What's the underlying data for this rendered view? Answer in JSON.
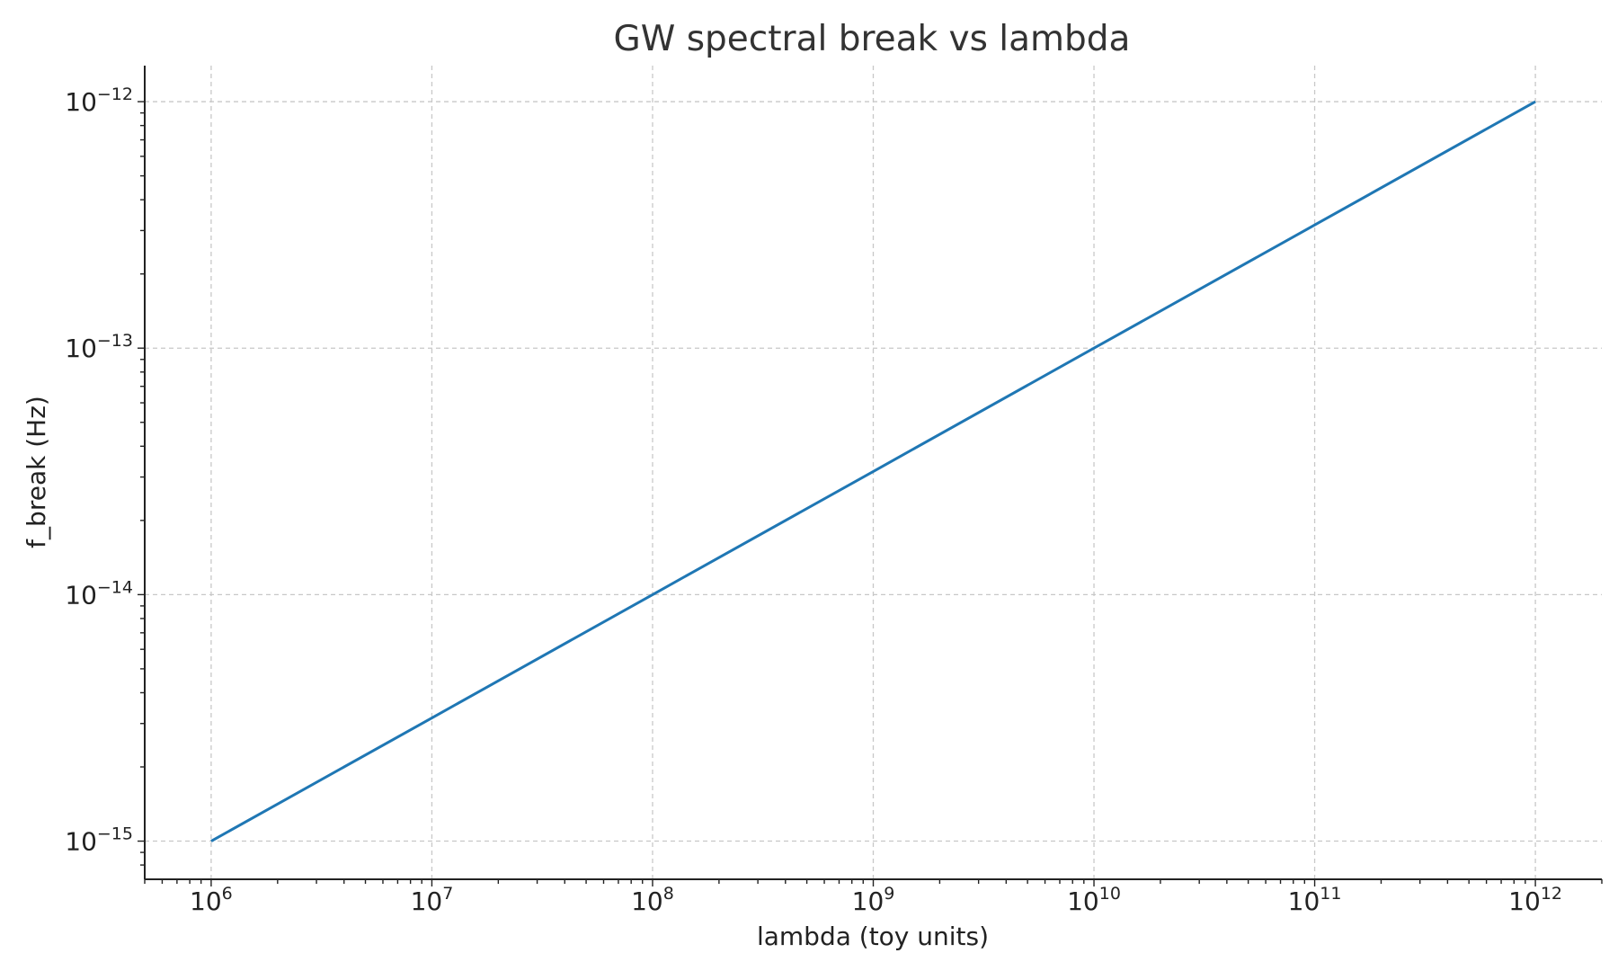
{
  "chart_data": {
    "type": "line",
    "title": "GW spectral break vs lambda",
    "xlabel": "lambda (toy units)",
    "ylabel": "f_break (Hz)",
    "xscale": "log",
    "yscale": "log",
    "xlim": [
      500000.0,
      2000000000000.0
    ],
    "ylim": [
      7e-16,
      1.4e-12
    ],
    "grid": true,
    "x_ticks": [
      {
        "base": "10",
        "exp": "6",
        "value": 1000000.0
      },
      {
        "base": "10",
        "exp": "7",
        "value": 10000000.0
      },
      {
        "base": "10",
        "exp": "8",
        "value": 100000000.0
      },
      {
        "base": "10",
        "exp": "9",
        "value": 1000000000.0
      },
      {
        "base": "10",
        "exp": "10",
        "value": 10000000000.0
      },
      {
        "base": "10",
        "exp": "11",
        "value": 100000000000.0
      },
      {
        "base": "10",
        "exp": "12",
        "value": 1000000000000.0
      }
    ],
    "y_ticks": [
      {
        "base": "10",
        "exp": "−12",
        "value": 1e-12
      },
      {
        "base": "10",
        "exp": "−13",
        "value": 1e-13
      },
      {
        "base": "10",
        "exp": "−14",
        "value": 1e-14
      },
      {
        "base": "10",
        "exp": "−15",
        "value": 1e-15
      }
    ],
    "series": [
      {
        "color": "#1f77b4",
        "x": [
          1000000.0,
          10000000.0,
          100000000.0,
          1000000000.0,
          10000000000.0,
          100000000000.0,
          1000000000000.0
        ],
        "y": [
          1e-15,
          3.16e-15,
          1e-14,
          3.16e-14,
          1e-13,
          3.16e-13,
          1e-12
        ]
      }
    ]
  }
}
